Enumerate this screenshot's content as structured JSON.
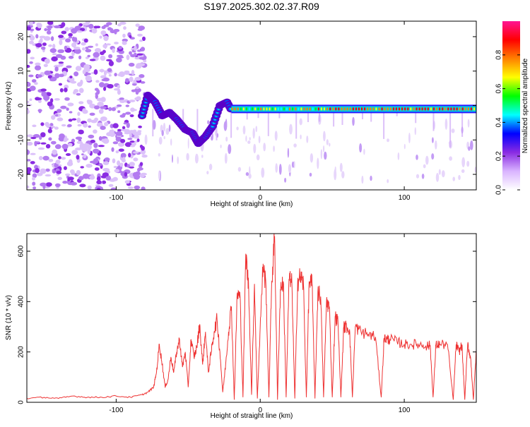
{
  "title": "S197.2025.302.02.37.R09",
  "chart_data": [
    {
      "type": "heatmap",
      "xlabel": "Height of straight line (km)",
      "ylabel": "Frequency (Hz)",
      "xlim": [
        -162,
        150
      ],
      "ylim": [
        -24.5,
        24.5
      ],
      "xticks": [
        -100,
        0,
        100
      ],
      "xtick_labels": [
        "-100",
        "0",
        "100"
      ],
      "yticks": [
        -20,
        -10,
        0,
        10,
        20
      ],
      "ytick_labels": [
        "-20",
        "-10",
        "0",
        "10",
        "20"
      ],
      "colorbar": {
        "label": "Normalized spectral amplitude",
        "range": [
          0,
          1
        ],
        "ticks": [
          0.0,
          0.2,
          0.4,
          0.6,
          0.8
        ],
        "tick_labels": [
          "0.0",
          "0.2",
          "0.4",
          "0.6",
          "0.8"
        ],
        "colormap": [
          "#ffffff",
          "#d9b3ff",
          "#8a2be2",
          "#0000ff",
          "#00ffff",
          "#00ff00",
          "#ffff00",
          "#ff8000",
          "#ff0000",
          "#ff1493"
        ]
      },
      "regions": [
        {
          "x_range": [
            -162,
            -80
          ],
          "character": "broadband noise",
          "amplitude": 0.15
        },
        {
          "x_range": [
            -80,
            -20
          ],
          "character": "scattered signal near 0 to -12 Hz",
          "amplitude": 0.3
        },
        {
          "x_range": [
            -20,
            150
          ],
          "character": "narrow line near -1 Hz",
          "amplitude": 0.9
        }
      ],
      "signal_track": [
        {
          "x": -82,
          "y": -3
        },
        {
          "x": -78,
          "y": 3
        },
        {
          "x": -73,
          "y": 1
        },
        {
          "x": -68,
          "y": -3
        },
        {
          "x": -63,
          "y": -2
        },
        {
          "x": -58,
          "y": -4
        },
        {
          "x": -52,
          "y": -7
        },
        {
          "x": -47,
          "y": -8
        },
        {
          "x": -43,
          "y": -11
        },
        {
          "x": -38,
          "y": -9
        },
        {
          "x": -33,
          "y": -6
        },
        {
          "x": -28,
          "y": 0
        },
        {
          "x": -23,
          "y": 1
        },
        {
          "x": -18,
          "y": -3
        },
        {
          "x": -10,
          "y": -2
        },
        {
          "x": 0,
          "y": -1.5
        },
        {
          "x": 10,
          "y": -1
        },
        {
          "x": 20,
          "y": -1
        },
        {
          "x": 40,
          "y": -1
        },
        {
          "x": 60,
          "y": -1
        },
        {
          "x": 80,
          "y": -1
        },
        {
          "x": 100,
          "y": -1
        },
        {
          "x": 120,
          "y": -1
        },
        {
          "x": 140,
          "y": -1
        },
        {
          "x": 150,
          "y": -1
        }
      ]
    },
    {
      "type": "line",
      "xlabel": "Height of straight line (km)",
      "ylabel": "SNR (10 * v/v)",
      "xlim": [
        -162,
        150
      ],
      "ylim": [
        0,
        670
      ],
      "xticks": [
        -100,
        0,
        100
      ],
      "xtick_labels": [
        "-100",
        "0",
        "100"
      ],
      "yticks": [
        0,
        200,
        400,
        600
      ],
      "ytick_labels": [
        "0",
        "200",
        "400",
        "600"
      ],
      "color": "#ee3333",
      "series": [
        {
          "x": [
            -162,
            -150,
            -140,
            -130,
            -120,
            -110,
            -100,
            -90,
            -82,
            -78,
            -74,
            -72,
            -70,
            -68,
            -66,
            -64,
            -62,
            -60,
            -58,
            -56,
            -54,
            -52,
            -50,
            -48,
            -46,
            -44,
            -42,
            -40,
            -38,
            -36,
            -34,
            -32,
            -30,
            -28,
            -26,
            -24,
            -22,
            -20,
            -18,
            -16,
            -14,
            -12,
            -10,
            -8,
            -6,
            -4,
            -2,
            0,
            2,
            4,
            6,
            8,
            10,
            12,
            14,
            16,
            18,
            20,
            22,
            24,
            26,
            28,
            30,
            32,
            34,
            36,
            38,
            40,
            42,
            44,
            46,
            48,
            50,
            52,
            54,
            56,
            58,
            60,
            62,
            64,
            66,
            70,
            75,
            80,
            84,
            86,
            88,
            90,
            95,
            100,
            105,
            110,
            115,
            118,
            120,
            122,
            125,
            130,
            134,
            136,
            138,
            140,
            142,
            144,
            146,
            148,
            150
          ],
          "values": [
            15,
            20,
            15,
            25,
            20,
            20,
            25,
            20,
            30,
            40,
            60,
            120,
            230,
            150,
            60,
            90,
            180,
            120,
            200,
            250,
            140,
            200,
            60,
            250,
            180,
            220,
            310,
            150,
            280,
            120,
            200,
            280,
            330,
            200,
            40,
            150,
            280,
            380,
            10,
            430,
            420,
            20,
            590,
            450,
            30,
            470,
            15,
            300,
            550,
            460,
            20,
            480,
            660,
            10,
            450,
            480,
            20,
            490,
            470,
            15,
            480,
            500,
            470,
            20,
            480,
            470,
            15,
            440,
            420,
            20,
            400,
            380,
            20,
            340,
            320,
            20,
            300,
            300,
            290,
            20,
            300,
            280,
            270,
            260,
            20,
            255,
            250,
            250,
            240,
            230,
            230,
            230,
            225,
            225,
            20,
            230,
            230,
            230,
            10,
            230,
            200,
            230,
            10,
            230,
            180,
            10,
            210
          ]
        }
      ]
    }
  ]
}
